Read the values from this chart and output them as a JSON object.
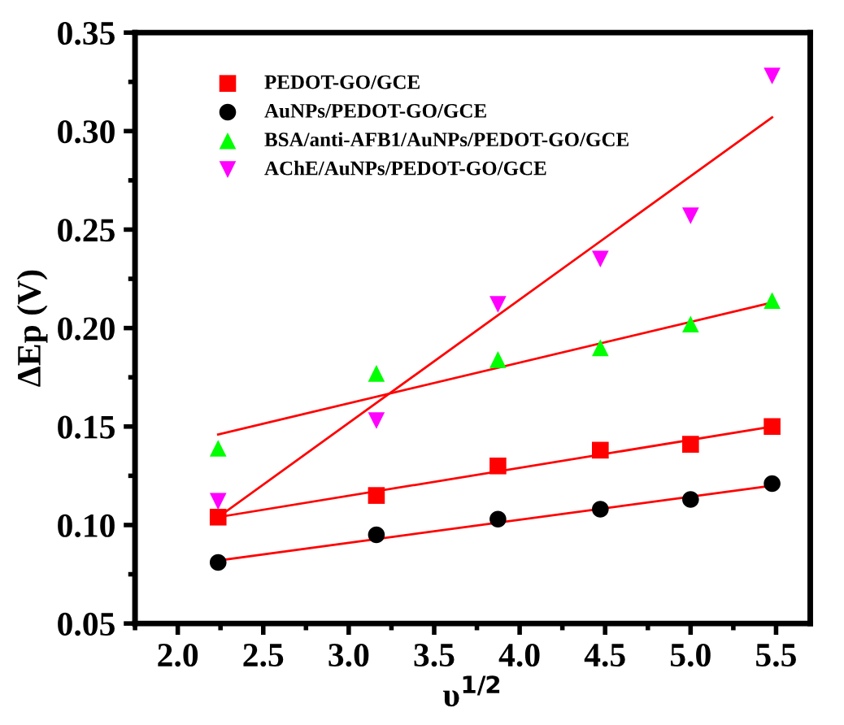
{
  "chart_data": {
    "type": "scatter",
    "xlabel": "υ$^{1/2}$",
    "ylabel": "ΔEp (V)",
    "xlim": [
      1.75,
      5.7
    ],
    "ylim": [
      0.05,
      0.35
    ],
    "xticks": [
      {
        "value": 2,
        "label": "2.0"
      },
      2.5,
      {
        "value": 3,
        "label": "3.0"
      },
      3.5,
      {
        "value": 4,
        "label": "4.0"
      },
      4.5,
      {
        "value": 5,
        "label": "5.0"
      },
      5.5
    ],
    "yticks": [
      0.05,
      {
        "value": 0.1,
        "label": "0.10"
      },
      0.15,
      {
        "value": 0.2,
        "label": "0.20"
      },
      0.25,
      {
        "value": 0.3,
        "label": "0.30"
      },
      0.35
    ],
    "grid": false,
    "legend": "top left",
    "series": [
      {
        "name": "PEDOT-GO/GCE",
        "color": "#ff0000",
        "marker": "square",
        "x": [
          2.236,
          3.162,
          3.873,
          4.472,
          5.0,
          5.477
        ],
        "values": [
          0.104,
          0.115,
          0.13,
          0.138,
          0.141,
          0.15
        ]
      },
      {
        "name": "AuNPs/PEDOT-GO/GCE",
        "color": "#000000",
        "marker": "circle",
        "x": [
          2.236,
          3.162,
          3.873,
          4.472,
          5.0,
          5.477
        ],
        "values": [
          0.081,
          0.095,
          0.103,
          0.108,
          0.113,
          0.121
        ]
      },
      {
        "name": "BSA/anti-AFB1/AuNPs/PEDOT-GO/GCE",
        "color": "#00ff00",
        "marker": "triangle",
        "x": [
          2.236,
          3.162,
          3.873,
          4.472,
          5.0,
          5.477
        ],
        "values": [
          0.139,
          0.177,
          0.184,
          0.19,
          0.202,
          0.214
        ]
      },
      {
        "name": "AChE/AuNPs/PEDOT-GO/GCE",
        "color": "#ff00ff",
        "marker": "triangle_down",
        "x": [
          2.236,
          3.162,
          3.873,
          4.472,
          5.0,
          5.477
        ],
        "values": [
          0.112,
          0.153,
          0.212,
          0.235,
          0.257,
          0.328
        ]
      },
      {
        "type": "line",
        "color": "#ff0000",
        "x": [
          2.236,
          5.477
        ],
        "values": [
          0.104,
          0.15
        ]
      },
      {
        "type": "line",
        "color": "#ff0000",
        "x": [
          2.236,
          5.477
        ],
        "values": [
          0.082,
          0.12
        ]
      },
      {
        "type": "line",
        "color": "#ff0000",
        "x": [
          2.236,
          5.477
        ],
        "values": [
          0.146,
          0.213
        ]
      },
      {
        "type": "line",
        "color": "#ff0000",
        "x": [
          2.236,
          5.477
        ],
        "values": [
          0.104,
          0.307
        ]
      }
    ]
  }
}
